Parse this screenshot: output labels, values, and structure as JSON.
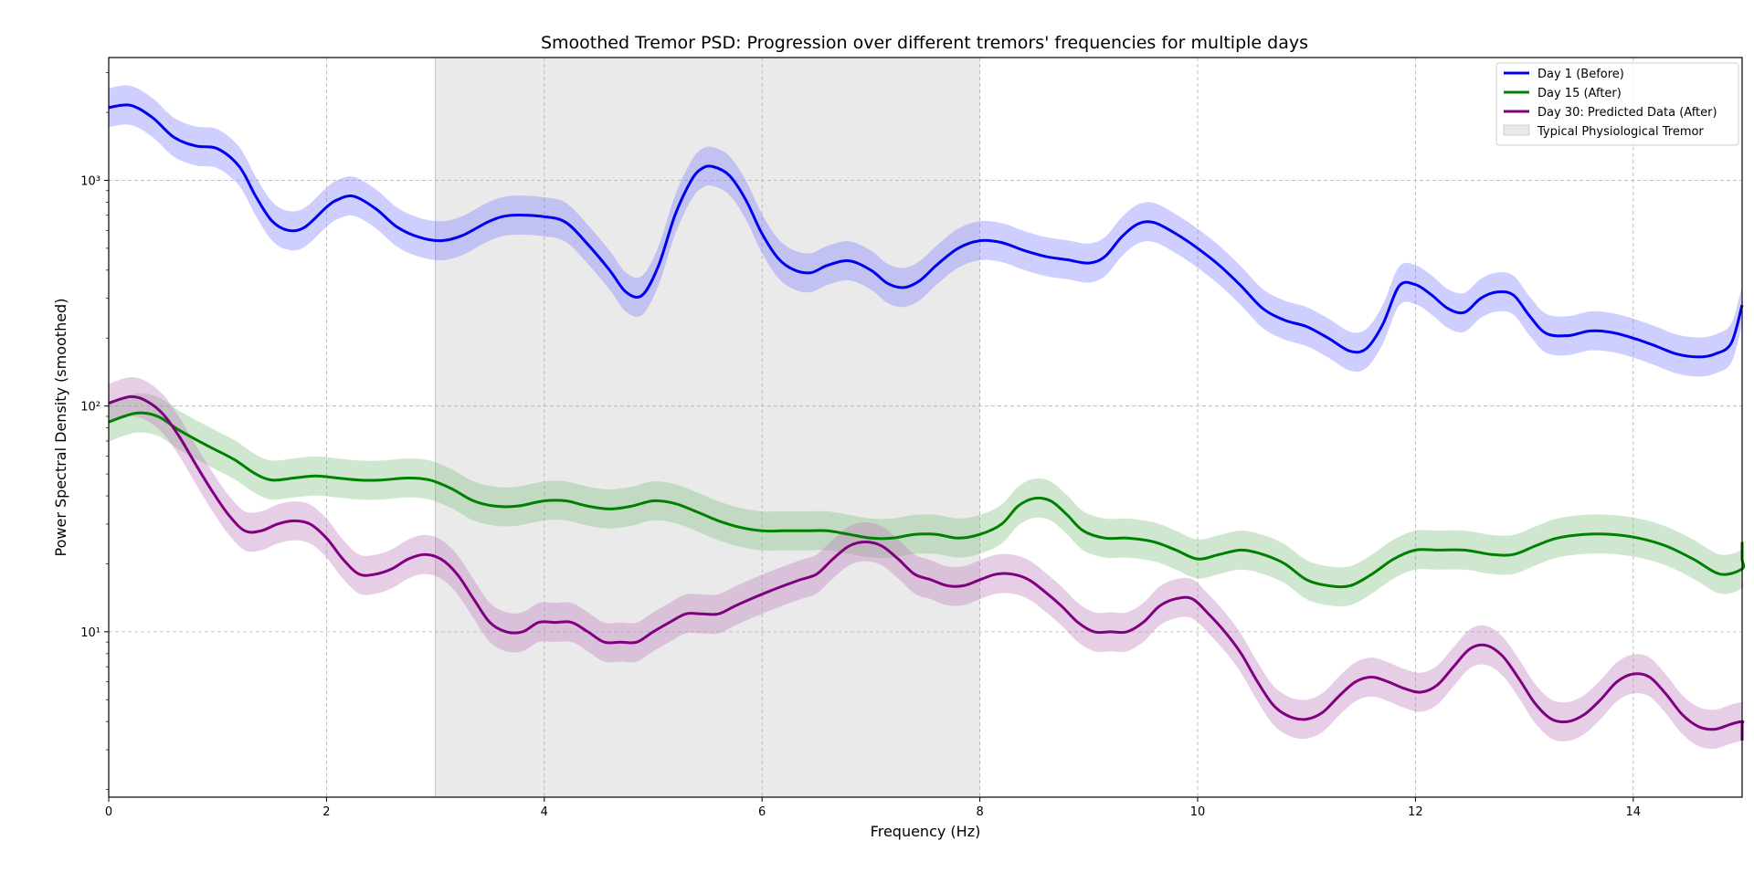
{
  "chart_data": {
    "type": "line",
    "title": "Smoothed Tremor PSD: Progression over different tremors' frequencies for multiple days",
    "xlabel": "Frequency (Hz)",
    "ylabel": "Power Spectral Density (smoothed)",
    "xlim": [
      0,
      15
    ],
    "ylim": [
      1.85,
      3500
    ],
    "yscale": "log",
    "grid": true,
    "legend_position": "top-right",
    "x_ticks": [
      0,
      2,
      4,
      6,
      8,
      10,
      12,
      14
    ],
    "x_tick_labels": [
      "0",
      "2",
      "4",
      "6",
      "8",
      "10",
      "12",
      "14"
    ],
    "y_ticks": [
      10,
      100,
      1000
    ],
    "y_tick_labels": [
      "10¹",
      "10²",
      "10³"
    ],
    "shaded_region": {
      "label": "Typical Physiological Tremor",
      "x_start": 3,
      "x_end": 8,
      "color": "#d9d9d9"
    },
    "series": [
      {
        "name": "Day 1 (Before)",
        "color": "#0000ee",
        "band_color": "#7f7fff",
        "band_factor": 1.22,
        "points": [
          [
            0,
            2100
          ],
          [
            0.2,
            2150
          ],
          [
            0.4,
            1900
          ],
          [
            0.6,
            1550
          ],
          [
            0.8,
            1420
          ],
          [
            1.0,
            1380
          ],
          [
            1.2,
            1150
          ],
          [
            1.35,
            850
          ],
          [
            1.5,
            660
          ],
          [
            1.65,
            600
          ],
          [
            1.8,
            620
          ],
          [
            2.0,
            760
          ],
          [
            2.1,
            820
          ],
          [
            2.25,
            850
          ],
          [
            2.45,
            750
          ],
          [
            2.65,
            620
          ],
          [
            2.85,
            560
          ],
          [
            3.05,
            540
          ],
          [
            3.25,
            570
          ],
          [
            3.5,
            660
          ],
          [
            3.7,
            700
          ],
          [
            4.0,
            690
          ],
          [
            4.2,
            650
          ],
          [
            4.4,
            520
          ],
          [
            4.6,
            400
          ],
          [
            4.75,
            320
          ],
          [
            4.9,
            310
          ],
          [
            5.05,
            420
          ],
          [
            5.2,
            700
          ],
          [
            5.35,
            1000
          ],
          [
            5.45,
            1130
          ],
          [
            5.55,
            1150
          ],
          [
            5.7,
            1050
          ],
          [
            5.85,
            820
          ],
          [
            6.0,
            580
          ],
          [
            6.15,
            450
          ],
          [
            6.3,
            400
          ],
          [
            6.45,
            390
          ],
          [
            6.6,
            420
          ],
          [
            6.8,
            440
          ],
          [
            7.0,
            400
          ],
          [
            7.15,
            350
          ],
          [
            7.3,
            335
          ],
          [
            7.45,
            360
          ],
          [
            7.6,
            420
          ],
          [
            7.8,
            500
          ],
          [
            8.0,
            540
          ],
          [
            8.2,
            530
          ],
          [
            8.4,
            490
          ],
          [
            8.6,
            460
          ],
          [
            8.8,
            445
          ],
          [
            9.0,
            430
          ],
          [
            9.15,
            460
          ],
          [
            9.3,
            560
          ],
          [
            9.45,
            640
          ],
          [
            9.6,
            650
          ],
          [
            9.8,
            580
          ],
          [
            10.0,
            500
          ],
          [
            10.2,
            420
          ],
          [
            10.4,
            340
          ],
          [
            10.6,
            270
          ],
          [
            10.8,
            240
          ],
          [
            11.0,
            225
          ],
          [
            11.2,
            200
          ],
          [
            11.4,
            175
          ],
          [
            11.55,
            180
          ],
          [
            11.7,
            230
          ],
          [
            11.85,
            340
          ],
          [
            12.0,
            345
          ],
          [
            12.15,
            310
          ],
          [
            12.3,
            270
          ],
          [
            12.45,
            260
          ],
          [
            12.6,
            300
          ],
          [
            12.75,
            320
          ],
          [
            12.9,
            310
          ],
          [
            13.05,
            250
          ],
          [
            13.2,
            210
          ],
          [
            13.4,
            205
          ],
          [
            13.6,
            215
          ],
          [
            13.8,
            212
          ],
          [
            14.0,
            200
          ],
          [
            14.2,
            185
          ],
          [
            14.4,
            170
          ],
          [
            14.6,
            165
          ],
          [
            14.75,
            170
          ],
          [
            14.9,
            190
          ],
          [
            15.0,
            280
          ]
        ]
      },
      {
        "name": "Day 15 (After)",
        "color": "#008000",
        "band_color": "#7fbf7f",
        "band_factor": 1.22,
        "points": [
          [
            0,
            85
          ],
          [
            0.25,
            93
          ],
          [
            0.45,
            90
          ],
          [
            0.65,
            78
          ],
          [
            0.9,
            67
          ],
          [
            1.15,
            58
          ],
          [
            1.35,
            50
          ],
          [
            1.5,
            47
          ],
          [
            1.7,
            48
          ],
          [
            1.9,
            49
          ],
          [
            2.1,
            48
          ],
          [
            2.3,
            47
          ],
          [
            2.5,
            47
          ],
          [
            2.75,
            48
          ],
          [
            2.95,
            47
          ],
          [
            3.15,
            43
          ],
          [
            3.35,
            38
          ],
          [
            3.55,
            36
          ],
          [
            3.75,
            36
          ],
          [
            4.0,
            38
          ],
          [
            4.2,
            38
          ],
          [
            4.4,
            36
          ],
          [
            4.6,
            35
          ],
          [
            4.8,
            36
          ],
          [
            5.0,
            38
          ],
          [
            5.2,
            37
          ],
          [
            5.4,
            34
          ],
          [
            5.6,
            31
          ],
          [
            5.8,
            29
          ],
          [
            6.0,
            28
          ],
          [
            6.2,
            28
          ],
          [
            6.4,
            28
          ],
          [
            6.6,
            28
          ],
          [
            6.8,
            27
          ],
          [
            7.0,
            26
          ],
          [
            7.2,
            26
          ],
          [
            7.4,
            27
          ],
          [
            7.6,
            27
          ],
          [
            7.8,
            26
          ],
          [
            8.0,
            27
          ],
          [
            8.2,
            30
          ],
          [
            8.35,
            36
          ],
          [
            8.5,
            39
          ],
          [
            8.65,
            38
          ],
          [
            8.8,
            33
          ],
          [
            8.95,
            28
          ],
          [
            9.15,
            26
          ],
          [
            9.35,
            26
          ],
          [
            9.6,
            25
          ],
          [
            9.8,
            23
          ],
          [
            10.0,
            21
          ],
          [
            10.2,
            22
          ],
          [
            10.4,
            23
          ],
          [
            10.6,
            22
          ],
          [
            10.8,
            20
          ],
          [
            11.0,
            17
          ],
          [
            11.2,
            16
          ],
          [
            11.4,
            16
          ],
          [
            11.6,
            18
          ],
          [
            11.8,
            21
          ],
          [
            12.0,
            23
          ],
          [
            12.2,
            23
          ],
          [
            12.45,
            23
          ],
          [
            12.7,
            22
          ],
          [
            12.9,
            22
          ],
          [
            13.1,
            24
          ],
          [
            13.3,
            26
          ],
          [
            13.55,
            27
          ],
          [
            13.8,
            27
          ],
          [
            14.05,
            26
          ],
          [
            14.3,
            24
          ],
          [
            14.55,
            21
          ],
          [
            14.8,
            18
          ],
          [
            15.0,
            19
          ],
          [
            15.2,
            21
          ],
          [
            15.35,
            24
          ],
          [
            15.5,
            25
          ]
        ]
      },
      {
        "name": "Day 30: Predicted Data (After)",
        "color": "#800080",
        "band_color": "#bf7fbf",
        "band_factor": 1.22,
        "points": [
          [
            0,
            103
          ],
          [
            0.2,
            110
          ],
          [
            0.35,
            105
          ],
          [
            0.5,
            92
          ],
          [
            0.65,
            73
          ],
          [
            0.8,
            55
          ],
          [
            0.95,
            42
          ],
          [
            1.1,
            33
          ],
          [
            1.25,
            28
          ],
          [
            1.4,
            28
          ],
          [
            1.55,
            30
          ],
          [
            1.7,
            31
          ],
          [
            1.85,
            30
          ],
          [
            2.0,
            26
          ],
          [
            2.15,
            21
          ],
          [
            2.3,
            18
          ],
          [
            2.45,
            18
          ],
          [
            2.6,
            19
          ],
          [
            2.75,
            21
          ],
          [
            2.9,
            22
          ],
          [
            3.05,
            21
          ],
          [
            3.2,
            18
          ],
          [
            3.35,
            14
          ],
          [
            3.5,
            11
          ],
          [
            3.65,
            10
          ],
          [
            3.8,
            10
          ],
          [
            3.95,
            11
          ],
          [
            4.1,
            11
          ],
          [
            4.25,
            11
          ],
          [
            4.4,
            10
          ],
          [
            4.55,
            9
          ],
          [
            4.7,
            9
          ],
          [
            4.85,
            9
          ],
          [
            5.0,
            10
          ],
          [
            5.15,
            11
          ],
          [
            5.3,
            12
          ],
          [
            5.45,
            12
          ],
          [
            5.6,
            12
          ],
          [
            5.75,
            13
          ],
          [
            5.9,
            14
          ],
          [
            6.05,
            15
          ],
          [
            6.2,
            16
          ],
          [
            6.35,
            17
          ],
          [
            6.5,
            18
          ],
          [
            6.65,
            21
          ],
          [
            6.8,
            24
          ],
          [
            6.95,
            25
          ],
          [
            7.1,
            24
          ],
          [
            7.25,
            21
          ],
          [
            7.4,
            18
          ],
          [
            7.55,
            17
          ],
          [
            7.7,
            16
          ],
          [
            7.85,
            16
          ],
          [
            8.0,
            17
          ],
          [
            8.15,
            18
          ],
          [
            8.3,
            18
          ],
          [
            8.45,
            17
          ],
          [
            8.6,
            15
          ],
          [
            8.75,
            13
          ],
          [
            8.9,
            11
          ],
          [
            9.05,
            10
          ],
          [
            9.2,
            10
          ],
          [
            9.35,
            10
          ],
          [
            9.5,
            11
          ],
          [
            9.65,
            13
          ],
          [
            9.8,
            14
          ],
          [
            9.95,
            14
          ],
          [
            10.1,
            12
          ],
          [
            10.25,
            10
          ],
          [
            10.4,
            8
          ],
          [
            10.55,
            6
          ],
          [
            10.7,
            4.7
          ],
          [
            10.85,
            4.2
          ],
          [
            11.0,
            4.1
          ],
          [
            11.15,
            4.4
          ],
          [
            11.3,
            5.2
          ],
          [
            11.45,
            6.0
          ],
          [
            11.6,
            6.3
          ],
          [
            11.75,
            6.0
          ],
          [
            11.9,
            5.6
          ],
          [
            12.05,
            5.4
          ],
          [
            12.2,
            5.8
          ],
          [
            12.35,
            7.0
          ],
          [
            12.5,
            8.4
          ],
          [
            12.65,
            8.7
          ],
          [
            12.8,
            7.8
          ],
          [
            12.95,
            6.2
          ],
          [
            13.1,
            4.8
          ],
          [
            13.25,
            4.1
          ],
          [
            13.4,
            4.0
          ],
          [
            13.55,
            4.3
          ],
          [
            13.7,
            5.0
          ],
          [
            13.85,
            6.0
          ],
          [
            14.0,
            6.5
          ],
          [
            14.15,
            6.3
          ],
          [
            14.3,
            5.3
          ],
          [
            14.45,
            4.3
          ],
          [
            14.6,
            3.8
          ],
          [
            14.75,
            3.7
          ],
          [
            14.9,
            3.9
          ],
          [
            15.05,
            4.0
          ],
          [
            15.2,
            3.9
          ],
          [
            15.35,
            3.6
          ],
          [
            15.5,
            3.3
          ]
        ]
      }
    ],
    "legend": [
      {
        "label": "Day 1 (Before)",
        "kind": "line",
        "color": "#0000ee"
      },
      {
        "label": "Day 15 (After)",
        "kind": "line",
        "color": "#008000"
      },
      {
        "label": "Day 30: Predicted Data (After)",
        "kind": "line",
        "color": "#800080"
      },
      {
        "label": "Typical Physiological Tremor",
        "kind": "patch",
        "color": "#d9d9d9"
      }
    ]
  }
}
